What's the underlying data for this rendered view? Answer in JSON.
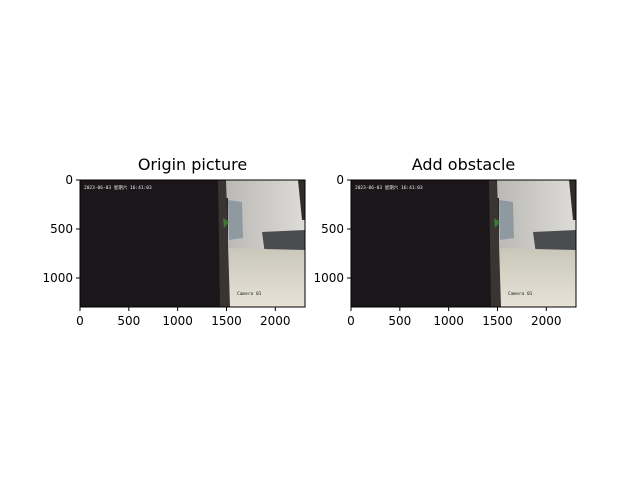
{
  "chart_data": [
    {
      "type": "image",
      "title": "Origin picture",
      "xlim": [
        0,
        2304
      ],
      "ylim": [
        1296,
        0
      ],
      "xticks": [
        0,
        500,
        1000,
        1500,
        2000
      ],
      "yticks": [
        0,
        500,
        1000
      ],
      "overlay": {
        "timestamp": "2023-06-03 星期六 16:41:03",
        "camera": "Camera 01"
      }
    },
    {
      "type": "image",
      "title": "Add obstacle",
      "xlim": [
        0,
        2304
      ],
      "ylim": [
        1296,
        0
      ],
      "xticks": [
        0,
        500,
        1000,
        1500,
        2000
      ],
      "yticks": [
        0,
        500,
        1000
      ],
      "overlay": {
        "timestamp": "2023-06-03 星期六 16:41:03",
        "camera": "Camera 01"
      }
    }
  ],
  "colors": {
    "dark_region": "#1b1619",
    "wall": "#d3d1ce",
    "table": "#ccc8bc"
  }
}
